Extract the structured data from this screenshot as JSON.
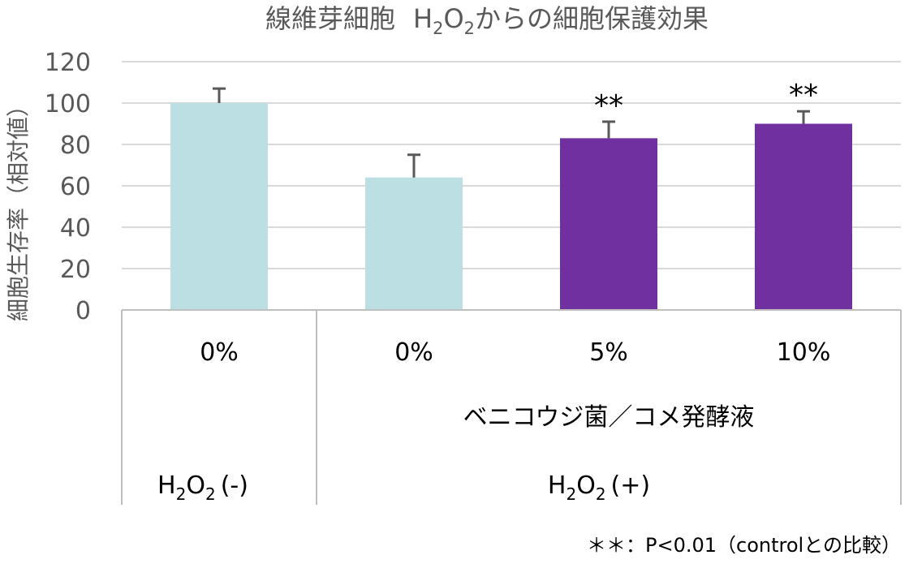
{
  "chart_data": {
    "type": "bar",
    "title": {
      "main": "線維芽細胞",
      "h2o2": {
        "base": "H",
        "sub1": "2",
        "mid": "O",
        "sub2": "2"
      },
      "suffix": "からの細胞保護効果"
    },
    "ylabel": "細胞生存率（相対値）",
    "ylim": [
      0,
      120
    ],
    "yticks": [
      "0",
      "20",
      "40",
      "60",
      "80",
      "100",
      "120"
    ],
    "grid": true,
    "categories": [
      "0%",
      "0%",
      "5%",
      "10%"
    ],
    "values": [
      100,
      64,
      83,
      90
    ],
    "errors": [
      7,
      11,
      8,
      6
    ],
    "bar_colors": [
      "#BCDFE3",
      "#BCDFE3",
      "#7030A0",
      "#7030A0"
    ],
    "significance": [
      "",
      "",
      "**",
      "**"
    ],
    "group_label": "ベニコウジ菌／コメ発酵液",
    "conditions": [
      {
        "base": "H",
        "sub1": "2",
        "mid": "O",
        "sub2": "2",
        "suffix": "(-)"
      },
      {
        "base": "H",
        "sub1": "2",
        "mid": "O",
        "sub2": "2",
        "suffix": "(+)"
      }
    ],
    "footnote": "＊＊：P<0.01（controlとの比較）",
    "colors": {
      "grid": "#D9D9D9",
      "text": "#595959",
      "error_bar": "#595959",
      "axis_line": "#BFBFBF"
    }
  }
}
